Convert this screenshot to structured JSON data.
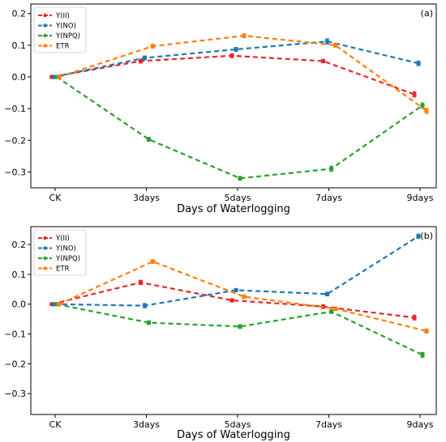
{
  "chart_data": [
    {
      "type": "line",
      "panel_label": "(a)",
      "categories": [
        "CK",
        "3days",
        "5days",
        "7days",
        "9days"
      ],
      "xlabel": "Days of Waterlogging",
      "ylim": [
        -0.35,
        0.23
      ],
      "yticks": [
        "0.2",
        "0.1",
        "0.0",
        "−0.1",
        "−0.2",
        "−0.3"
      ],
      "ytick_values": [
        0.2,
        0.1,
        0.0,
        -0.1,
        -0.2,
        -0.3
      ],
      "legend_position": "upper-left",
      "series": [
        {
          "name": "Y(II)",
          "color": "#e8262b",
          "values": [
            0.0,
            0.05,
            0.067,
            0.05,
            -0.055
          ],
          "err": [
            0.002,
            0.006,
            0.006,
            0.005,
            0.008
          ]
        },
        {
          "name": "Y(NO)",
          "color": "#1f77b4",
          "values": [
            0.0,
            0.06,
            0.087,
            0.112,
            0.043
          ],
          "err": [
            0.002,
            0.006,
            0.006,
            0.008,
            0.007
          ]
        },
        {
          "name": "Y(NPQ)",
          "color": "#2ca02c",
          "values": [
            0.0,
            -0.197,
            -0.32,
            -0.29,
            -0.09
          ],
          "err": [
            0.002,
            0.006,
            0.006,
            0.008,
            0.008
          ]
        },
        {
          "name": "ETR",
          "color": "#ff7f0e",
          "values": [
            0.0,
            0.097,
            0.13,
            0.1,
            -0.107
          ],
          "err": [
            0.002,
            0.006,
            0.006,
            0.006,
            0.008
          ]
        }
      ]
    },
    {
      "type": "line",
      "panel_label": "(b)",
      "categories": [
        "CK",
        "3days",
        "5days",
        "7days",
        "9days"
      ],
      "xlabel": "Days of Waterlogging",
      "ylim": [
        -0.37,
        0.26
      ],
      "yticks": [
        "0.2",
        "0.1",
        "0.0",
        "−0.1",
        "−0.2",
        "−0.3"
      ],
      "ytick_values": [
        0.2,
        0.1,
        0.0,
        -0.1,
        -0.2,
        -0.3
      ],
      "legend_position": "upper-left",
      "series": [
        {
          "name": "Y(II)",
          "color": "#e8262b",
          "values": [
            0.0,
            0.073,
            0.013,
            -0.008,
            -0.045
          ],
          "err": [
            0.002,
            0.007,
            0.005,
            0.006,
            0.008
          ]
        },
        {
          "name": "Y(NO)",
          "color": "#1f77b4",
          "values": [
            0.0,
            -0.005,
            0.047,
            0.034,
            0.228
          ],
          "err": [
            0.002,
            0.007,
            0.005,
            0.006,
            0.007
          ]
        },
        {
          "name": "Y(NPQ)",
          "color": "#2ca02c",
          "values": [
            0.0,
            -0.062,
            -0.075,
            -0.025,
            -0.17
          ],
          "err": [
            0.002,
            0.006,
            0.006,
            0.006,
            0.008
          ]
        },
        {
          "name": "ETR",
          "color": "#ff7f0e",
          "values": [
            0.0,
            0.143,
            0.025,
            -0.015,
            -0.09
          ],
          "err": [
            0.002,
            0.006,
            0.006,
            0.006,
            0.007
          ]
        }
      ]
    }
  ]
}
